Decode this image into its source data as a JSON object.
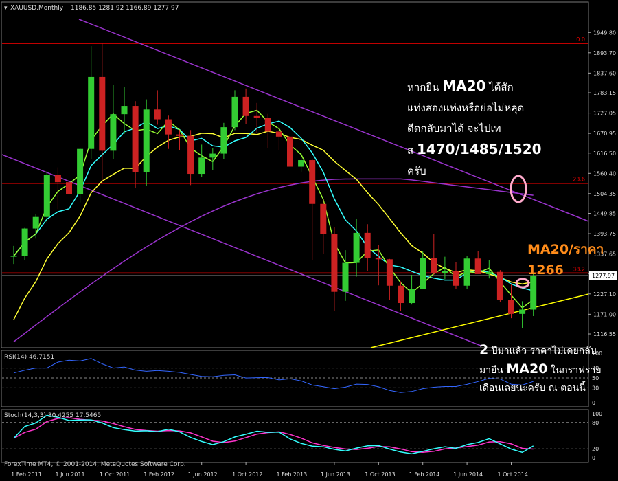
{
  "header": {
    "symbol": "XAUUSD,Monthly",
    "ohlc": "1186.85 1281.92 1166.89 1277.97"
  },
  "colors": {
    "background": "#000000",
    "bull_candle": "#33cc33",
    "bear_candle": "#cc2222",
    "ma20": "#33ffff",
    "ma_green": "#99ff33",
    "ma_yellow": "#ffff33",
    "ma_purple": "#9933cc",
    "fib_line": "#ff0000",
    "trend_line": "#9933cc",
    "support_line": "#ffff00",
    "rsi_line": "#3366ff",
    "stoch_main": "#33ffff",
    "stoch_signal": "#ff33cc"
  },
  "chart_data": [
    {
      "type": "candlestick",
      "name": "XAUUSD Monthly",
      "x": [
        "2011-01",
        "2011-02",
        "2011-03",
        "2011-04",
        "2011-05",
        "2011-06",
        "2011-07",
        "2011-08",
        "2011-09",
        "2011-10",
        "2011-11",
        "2011-12",
        "2012-01",
        "2012-02",
        "2012-03",
        "2012-04",
        "2012-05",
        "2012-06",
        "2012-07",
        "2012-08",
        "2012-09",
        "2012-10",
        "2012-11",
        "2012-12",
        "2013-01",
        "2013-02",
        "2013-03",
        "2013-04",
        "2013-05",
        "2013-06",
        "2013-07",
        "2013-08",
        "2013-09",
        "2013-10",
        "2013-11",
        "2013-12",
        "2014-01",
        "2014-02",
        "2014-03",
        "2014-04",
        "2014-05",
        "2014-06",
        "2014-07",
        "2014-08",
        "2014-09",
        "2014-10",
        "2014-11",
        "2014-12"
      ],
      "candles": [
        [
          1330,
          1360,
          1310,
          1332
        ],
        [
          1332,
          1410,
          1320,
          1408
        ],
        [
          1408,
          1447,
          1380,
          1440
        ],
        [
          1440,
          1566,
          1425,
          1556
        ],
        [
          1556,
          1577,
          1462,
          1536
        ],
        [
          1536,
          1555,
          1478,
          1503
        ],
        [
          1503,
          1630,
          1480,
          1628
        ],
        [
          1628,
          1912,
          1600,
          1827
        ],
        [
          1827,
          1920,
          1535,
          1623
        ],
        [
          1623,
          1805,
          1600,
          1724
        ],
        [
          1724,
          1800,
          1670,
          1747
        ],
        [
          1747,
          1760,
          1520,
          1564
        ],
        [
          1564,
          1765,
          1525,
          1737
        ],
        [
          1737,
          1790,
          1695,
          1710
        ],
        [
          1710,
          1720,
          1628,
          1668
        ],
        [
          1668,
          1680,
          1625,
          1664
        ],
        [
          1664,
          1680,
          1528,
          1559
        ],
        [
          1559,
          1640,
          1550,
          1604
        ],
        [
          1604,
          1630,
          1570,
          1615
        ],
        [
          1615,
          1700,
          1600,
          1688
        ],
        [
          1688,
          1790,
          1680,
          1772
        ],
        [
          1772,
          1795,
          1696,
          1719
        ],
        [
          1719,
          1755,
          1672,
          1713
        ],
        [
          1713,
          1725,
          1630,
          1676
        ],
        [
          1676,
          1695,
          1625,
          1662
        ],
        [
          1662,
          1675,
          1555,
          1579
        ],
        [
          1579,
          1617,
          1565,
          1597
        ],
        [
          1597,
          1600,
          1320,
          1476
        ],
        [
          1476,
          1488,
          1337,
          1393
        ],
        [
          1393,
          1412,
          1180,
          1233
        ],
        [
          1233,
          1348,
          1208,
          1313
        ],
        [
          1313,
          1434,
          1275,
          1396
        ],
        [
          1396,
          1420,
          1290,
          1327
        ],
        [
          1327,
          1362,
          1251,
          1323
        ],
        [
          1323,
          1324,
          1210,
          1250
        ],
        [
          1250,
          1262,
          1181,
          1202
        ],
        [
          1202,
          1280,
          1198,
          1240
        ],
        [
          1240,
          1345,
          1240,
          1326
        ],
        [
          1326,
          1392,
          1280,
          1284
        ],
        [
          1284,
          1330,
          1268,
          1291
        ],
        [
          1291,
          1316,
          1240,
          1250
        ],
        [
          1250,
          1332,
          1240,
          1325
        ],
        [
          1325,
          1345,
          1285,
          1282
        ],
        [
          1282,
          1321,
          1270,
          1288
        ],
        [
          1288,
          1293,
          1205,
          1211
        ],
        [
          1211,
          1255,
          1160,
          1172
        ],
        [
          1172,
          1207,
          1133,
          1184
        ],
        [
          1184,
          1282,
          1166,
          1278
        ]
      ],
      "overlays": [
        {
          "name": "MA20",
          "color": "#33ffff"
        },
        {
          "name": "MA (green)",
          "color": "#99ff33"
        },
        {
          "name": "MA (yellow)",
          "color": "#ffff33"
        },
        {
          "name": "MA (purple)",
          "color": "#9933cc"
        }
      ],
      "fibonacci": [
        {
          "label": "0.0",
          "price": 1920
        },
        {
          "label": "23.6",
          "price": 1533
        },
        {
          "label": "38.2",
          "price": 1285
        }
      ],
      "current_price": 1277.97,
      "y_ticks": [
        1949.8,
        1893.7,
        1837.6,
        1783.15,
        1727.05,
        1670.95,
        1616.5,
        1560.4,
        1504.35,
        1449.85,
        1393.75,
        1337.65,
        1283.2,
        1227.1,
        1171.0,
        1116.55
      ],
      "x_ticks": [
        "1 Feb 2011",
        "1 Jun 2011",
        "1 Oct 2011",
        "1 Feb 2012",
        "1 Jun 2012",
        "1 Oct 2012",
        "1 Feb 2013",
        "1 Jun 2013",
        "1 Oct 2013",
        "1 Feb 2014",
        "1 Jun 2014",
        "1 Oct 2014"
      ],
      "ylim": [
        1090,
        1975
      ]
    },
    {
      "type": "line",
      "name": "RSI(14) 46.7151",
      "y_ticks": [
        100,
        70,
        50,
        30,
        0
      ],
      "levels": [
        70,
        50,
        30
      ],
      "ylim": [
        0,
        100
      ]
    },
    {
      "type": "line",
      "name": "Stoch(14,3,3) 30.4255 17.5465",
      "y_ticks": [
        100,
        80,
        20,
        0
      ],
      "levels": [
        80,
        20
      ],
      "ylim": [
        0,
        100
      ]
    }
  ],
  "annotations": {
    "thai_note_1": {
      "line1_pre": "หากยืน ",
      "line1_bold": "MA20",
      "line1_post": " ได้สัก",
      "line2": "แท่งสองแท่งหรือย่อไม่หลุด",
      "line3": "ดีดกลับมาได้ จะไปเท",
      "line4_pre": "ส ",
      "line4_bold": "1470/1485/1520",
      "line5": "ครับ"
    },
    "ma20_price": {
      "line1": "MA20/ราคา",
      "line2": "1266"
    },
    "thai_note_2": {
      "line1_bold": "2",
      "line1_post": " ปีมาแล้ว ราคาไม่เคยกลับ",
      "line2_pre": "มายืน ",
      "line2_bold": "MA20",
      "line2_post": " ในกราฟราย",
      "line3": "เดือนเลยนะครับ ณ ตอนนี้"
    }
  },
  "footer": {
    "copyright": "ForexTime MT4, © 2001-2014, MetaQuotes Software Corp."
  }
}
